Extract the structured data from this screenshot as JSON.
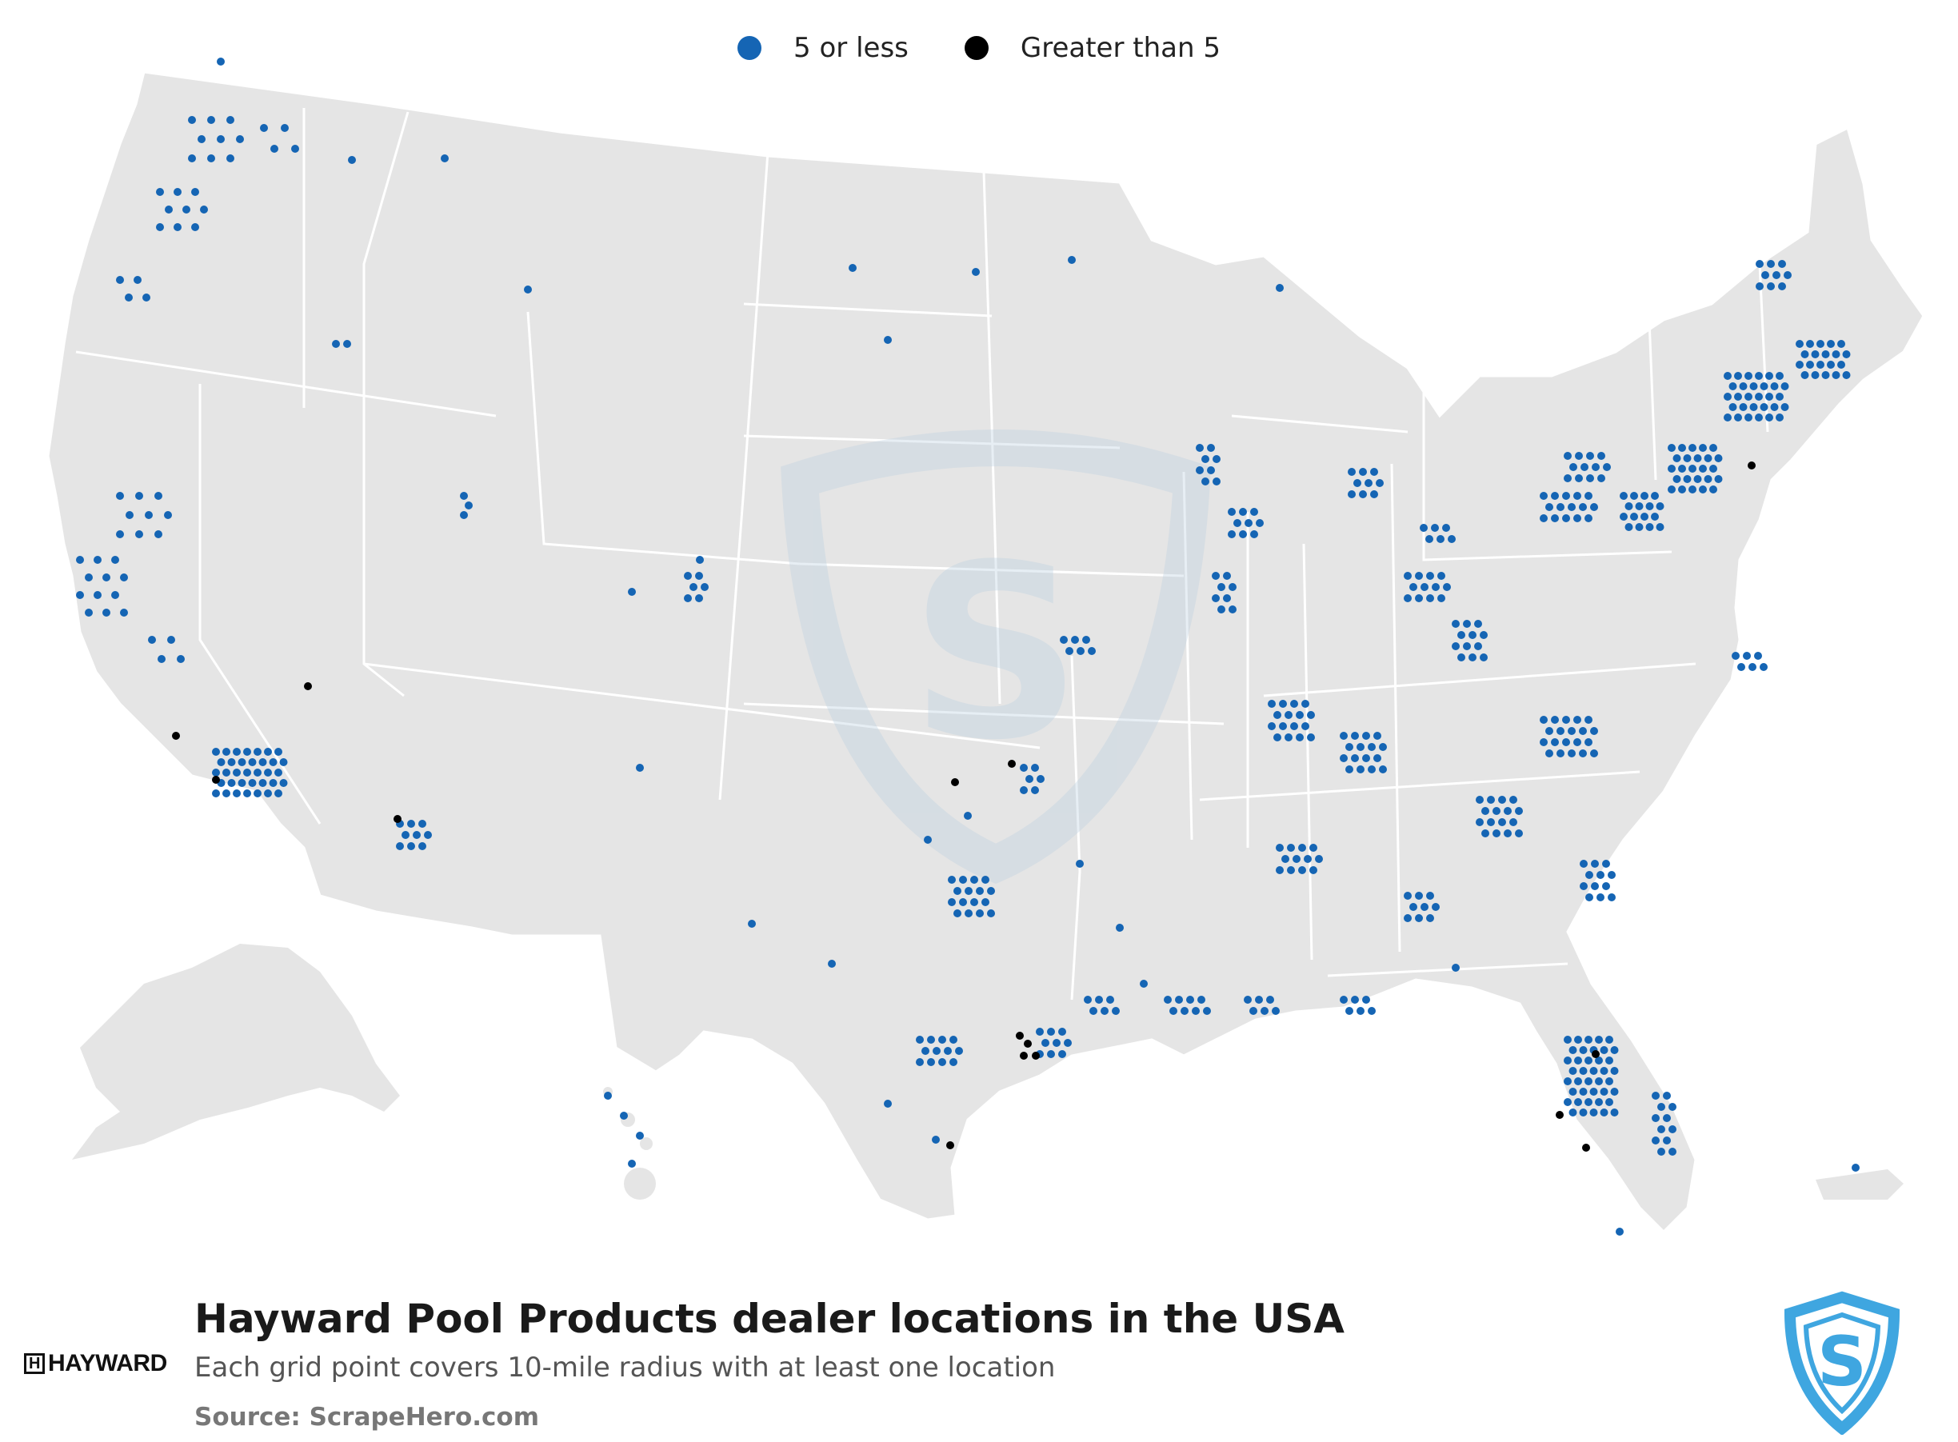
{
  "legend": {
    "small_label": "5 or less",
    "large_label": "Greater than 5",
    "small_color": "#1565b4",
    "large_color": "#000000"
  },
  "map": {
    "land_color": "#e5e5e5",
    "border_color": "#ffffff",
    "watermark": "ScrapeHero shield logo"
  },
  "footer": {
    "title": "Hayward Pool Products dealer locations in the USA",
    "subtitle": "Each grid point covers 10-mile radius with at least one location",
    "source": "Source: ScrapeHero.com"
  },
  "brand": {
    "name": "HAYWARD",
    "icon": "hayward-h-icon",
    "publisher_icon": "scrapehero-shield-icon",
    "publisher_color": "#3fa6e0"
  }
}
